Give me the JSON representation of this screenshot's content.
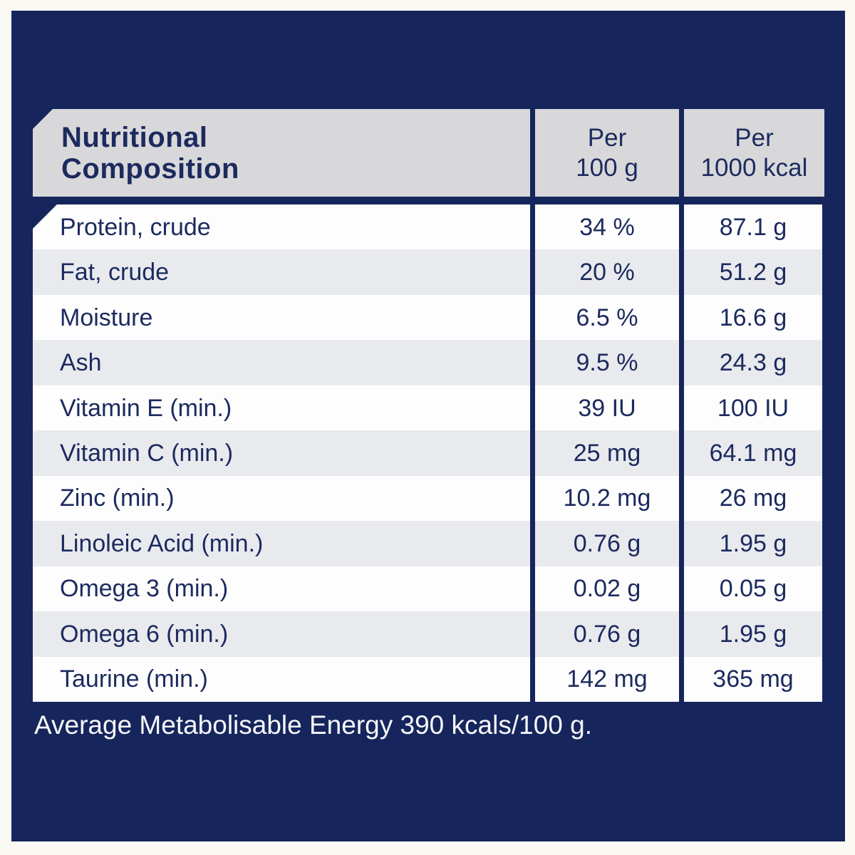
{
  "colors": {
    "background": "#fbf9f4",
    "panel_navy": "#16265c",
    "header_gray": "#d8d8da",
    "row_white": "#fdfdfd",
    "row_alt": "#e9eaee",
    "text_navy": "#1c2a5e",
    "footer_text": "#f7f7f9"
  },
  "header": {
    "title_line1": "Nutritional",
    "title_line2": "Composition",
    "col_100g_line1": "Per",
    "col_100g_line2": "100 g",
    "col_1000kcal_line1": "Per",
    "col_1000kcal_line2": "1000 kcal"
  },
  "table": {
    "rows": [
      {
        "label": "Protein, crude",
        "per_100g": "34 %",
        "per_1000kcal": "87.1 g"
      },
      {
        "label": "Fat, crude",
        "per_100g": "20 %",
        "per_1000kcal": "51.2 g"
      },
      {
        "label": "Moisture",
        "per_100g": "6.5 %",
        "per_1000kcal": "16.6 g"
      },
      {
        "label": "Ash",
        "per_100g": "9.5 %",
        "per_1000kcal": "24.3 g"
      },
      {
        "label": "Vitamin E (min.)",
        "per_100g": "39 IU",
        "per_1000kcal": "100 IU"
      },
      {
        "label": "Vitamin C (min.)",
        "per_100g": "25 mg",
        "per_1000kcal": "64.1 mg"
      },
      {
        "label": "Zinc (min.)",
        "per_100g": "10.2 mg",
        "per_1000kcal": "26 mg"
      },
      {
        "label": "Linoleic Acid (min.)",
        "per_100g": "0.76 g",
        "per_1000kcal": "1.95 g"
      },
      {
        "label": "Omega 3 (min.)",
        "per_100g": "0.02 g",
        "per_1000kcal": "0.05 g"
      },
      {
        "label": "Omega 6 (min.)",
        "per_100g": "0.76 g",
        "per_1000kcal": "1.95 g"
      },
      {
        "label": "Taurine (min.)",
        "per_100g": "142 mg",
        "per_1000kcal": "365 mg"
      }
    ]
  },
  "footer": {
    "text": "Average Metabolisable Energy 390 kcals/100 g."
  }
}
